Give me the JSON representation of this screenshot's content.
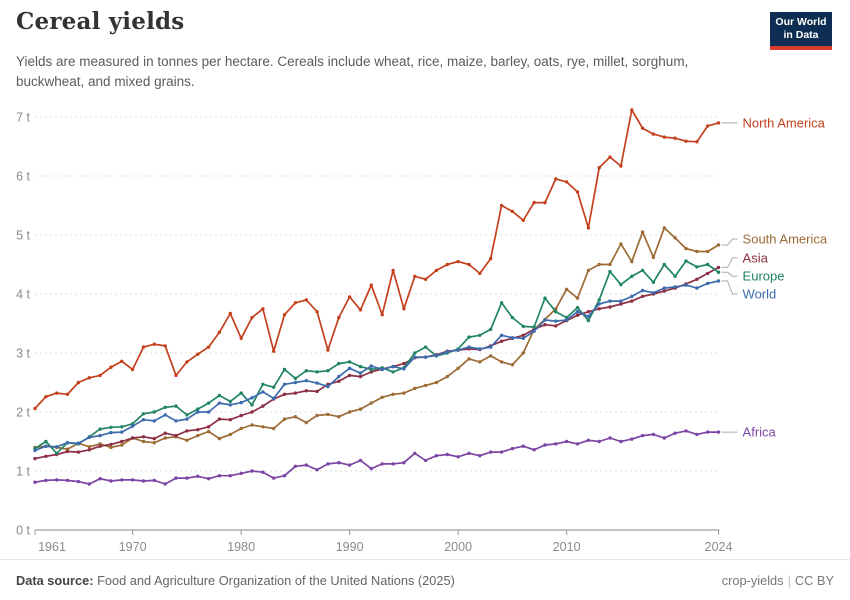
{
  "header": {
    "title": "Cereal yields",
    "subtitle": "Yields are measured in tonnes per hectare. Cereals include wheat, rice, maize, barley, oats, rye, millet, sorghum, buckwheat, and mixed grains.",
    "logo": {
      "line1": "Our World",
      "line2": "in Data"
    }
  },
  "footer": {
    "source_label": "Data source:",
    "source_text": " Food and Agriculture Organization of the United Nations (2025)",
    "slug": "crop-yields",
    "license": "CC BY"
  },
  "chart_data": {
    "type": "line",
    "title": "Cereal yields",
    "ylabel": "tonnes per hectare",
    "ylim": [
      0,
      7
    ],
    "y_ticks": [
      "0 t",
      "1 t",
      "2 t",
      "3 t",
      "4 t",
      "5 t",
      "6 t",
      "7 t"
    ],
    "x_start_year": 1961,
    "x_end_year": 2024,
    "x_tick_years": [
      1961,
      1970,
      1980,
      1990,
      2000,
      2010,
      2024
    ],
    "grid": "dashed-horizontal",
    "legend_position": "right-of-line-ends",
    "series": [
      {
        "name": "North America",
        "color": "#c4401d",
        "values": [
          2.06,
          2.26,
          2.32,
          2.3,
          2.5,
          2.58,
          2.62,
          2.76,
          2.86,
          2.72,
          3.1,
          3.15,
          3.12,
          2.62,
          2.85,
          2.98,
          3.1,
          3.35,
          3.67,
          3.25,
          3.6,
          3.75,
          3.03,
          3.65,
          3.85,
          3.9,
          3.7,
          3.05,
          3.6,
          3.95,
          3.73,
          4.15,
          3.65,
          4.4,
          3.75,
          4.3,
          4.25,
          4.4,
          4.5,
          4.55,
          4.5,
          4.35,
          4.6,
          5.5,
          5.4,
          5.25,
          5.55,
          5.55,
          5.95,
          5.9,
          5.73,
          5.12,
          6.14,
          6.32,
          6.17,
          7.12,
          6.81,
          6.71,
          6.66,
          6.64,
          6.59,
          6.58,
          6.85,
          6.9
        ]
      },
      {
        "name": "South America",
        "color": "#9d6b35",
        "values": [
          1.4,
          1.42,
          1.4,
          1.37,
          1.47,
          1.41,
          1.46,
          1.4,
          1.44,
          1.56,
          1.5,
          1.48,
          1.56,
          1.58,
          1.52,
          1.6,
          1.67,
          1.55,
          1.62,
          1.72,
          1.78,
          1.75,
          1.72,
          1.88,
          1.92,
          1.82,
          1.94,
          1.96,
          1.92,
          2.0,
          2.05,
          2.15,
          2.25,
          2.3,
          2.32,
          2.4,
          2.45,
          2.5,
          2.6,
          2.74,
          2.9,
          2.85,
          2.95,
          2.85,
          2.8,
          3.0,
          3.4,
          3.57,
          3.75,
          4.08,
          3.93,
          4.4,
          4.5,
          4.5,
          4.85,
          4.55,
          5.05,
          4.62,
          5.12,
          4.95,
          4.77,
          4.72,
          4.72,
          4.83
        ]
      },
      {
        "name": "Asia",
        "color": "#8c2e44",
        "values": [
          1.21,
          1.25,
          1.28,
          1.33,
          1.32,
          1.36,
          1.42,
          1.45,
          1.5,
          1.56,
          1.58,
          1.55,
          1.64,
          1.6,
          1.68,
          1.7,
          1.75,
          1.88,
          1.87,
          1.94,
          2.0,
          2.1,
          2.22,
          2.3,
          2.32,
          2.36,
          2.35,
          2.47,
          2.52,
          2.62,
          2.6,
          2.68,
          2.73,
          2.77,
          2.82,
          2.92,
          2.93,
          2.97,
          3.03,
          3.05,
          3.07,
          3.06,
          3.12,
          3.2,
          3.25,
          3.3,
          3.4,
          3.48,
          3.46,
          3.55,
          3.64,
          3.7,
          3.75,
          3.78,
          3.83,
          3.88,
          3.96,
          4.0,
          4.05,
          4.1,
          4.17,
          4.25,
          4.35,
          4.45
        ]
      },
      {
        "name": "Europe",
        "color": "#218565",
        "values": [
          1.38,
          1.5,
          1.3,
          1.48,
          1.46,
          1.58,
          1.71,
          1.74,
          1.75,
          1.8,
          1.97,
          2.0,
          2.08,
          2.1,
          1.95,
          2.05,
          2.15,
          2.28,
          2.18,
          2.32,
          2.12,
          2.47,
          2.42,
          2.72,
          2.57,
          2.7,
          2.68,
          2.7,
          2.82,
          2.85,
          2.77,
          2.72,
          2.75,
          2.68,
          2.75,
          3.0,
          3.1,
          2.95,
          3.0,
          3.07,
          3.27,
          3.3,
          3.4,
          3.85,
          3.6,
          3.45,
          3.44,
          3.93,
          3.7,
          3.6,
          3.77,
          3.55,
          3.9,
          4.38,
          4.16,
          4.3,
          4.4,
          4.2,
          4.5,
          4.3,
          4.56,
          4.46,
          4.5,
          4.37
        ]
      },
      {
        "name": "World",
        "color": "#3d6cae",
        "values": [
          1.35,
          1.42,
          1.41,
          1.48,
          1.47,
          1.57,
          1.6,
          1.65,
          1.66,
          1.76,
          1.87,
          1.85,
          1.95,
          1.85,
          1.88,
          2.0,
          2.0,
          2.15,
          2.12,
          2.16,
          2.24,
          2.34,
          2.23,
          2.47,
          2.5,
          2.53,
          2.49,
          2.43,
          2.6,
          2.74,
          2.66,
          2.78,
          2.72,
          2.77,
          2.73,
          2.93,
          2.93,
          2.96,
          3.02,
          3.05,
          3.1,
          3.07,
          3.1,
          3.3,
          3.26,
          3.25,
          3.37,
          3.56,
          3.54,
          3.56,
          3.7,
          3.62,
          3.83,
          3.88,
          3.88,
          3.96,
          4.06,
          4.02,
          4.1,
          4.12,
          4.15,
          4.1,
          4.18,
          4.22
        ]
      },
      {
        "name": "Africa",
        "color": "#7c44a4",
        "values": [
          0.81,
          0.84,
          0.85,
          0.84,
          0.82,
          0.78,
          0.87,
          0.83,
          0.85,
          0.85,
          0.83,
          0.84,
          0.78,
          0.88,
          0.88,
          0.91,
          0.87,
          0.92,
          0.92,
          0.96,
          1.0,
          0.98,
          0.88,
          0.92,
          1.08,
          1.1,
          1.02,
          1.12,
          1.14,
          1.1,
          1.18,
          1.04,
          1.12,
          1.12,
          1.14,
          1.3,
          1.18,
          1.26,
          1.28,
          1.24,
          1.3,
          1.26,
          1.32,
          1.32,
          1.38,
          1.42,
          1.36,
          1.44,
          1.46,
          1.5,
          1.46,
          1.52,
          1.5,
          1.56,
          1.5,
          1.54,
          1.6,
          1.62,
          1.56,
          1.64,
          1.68,
          1.62,
          1.66,
          1.66
        ]
      }
    ]
  }
}
